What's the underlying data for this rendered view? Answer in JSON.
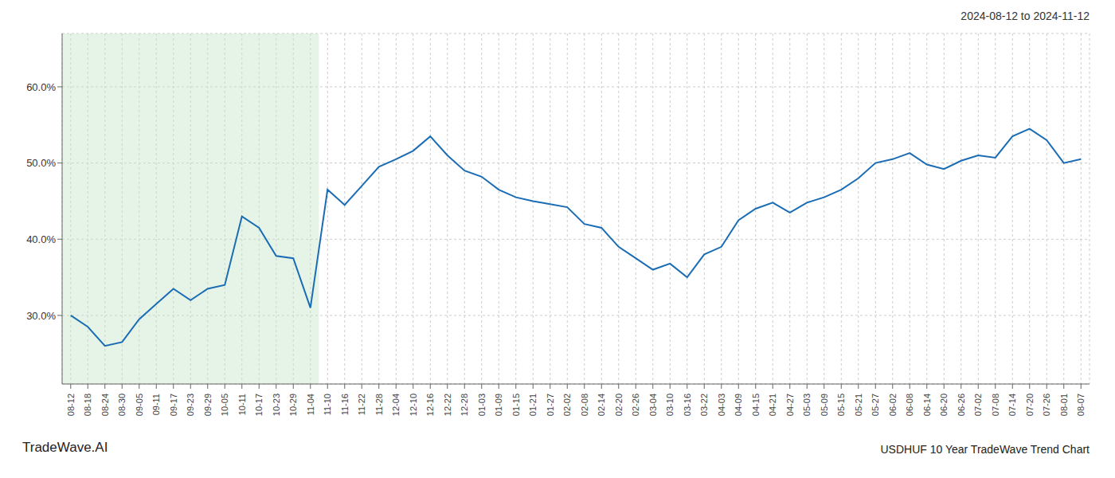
{
  "chart_data": {
    "type": "line",
    "title": "2024-08-12 to 2024-11-12",
    "annotations": [
      "TradeWave.AI",
      "USDHUF 10 Year TradeWave Trend Chart"
    ],
    "categories": [
      "08-12",
      "08-18",
      "08-24",
      "08-30",
      "09-05",
      "09-11",
      "09-17",
      "09-23",
      "09-29",
      "10-05",
      "10-11",
      "10-17",
      "10-23",
      "10-29",
      "11-04",
      "11-10",
      "11-16",
      "11-22",
      "11-28",
      "12-04",
      "12-10",
      "12-16",
      "12-22",
      "12-28",
      "01-03",
      "01-09",
      "01-15",
      "01-21",
      "01-27",
      "02-02",
      "02-08",
      "02-14",
      "02-20",
      "02-26",
      "03-04",
      "03-10",
      "03-16",
      "03-22",
      "04-03",
      "04-09",
      "04-15",
      "04-21",
      "04-27",
      "05-03",
      "05-09",
      "05-15",
      "05-21",
      "05-27",
      "06-02",
      "06-08",
      "06-14",
      "06-20",
      "06-26",
      "07-02",
      "07-08",
      "07-14",
      "07-20",
      "07-26",
      "08-01",
      "08-07"
    ],
    "values": [
      0.3,
      0.285,
      0.26,
      0.265,
      0.295,
      0.315,
      0.335,
      0.32,
      0.335,
      0.34,
      0.43,
      0.415,
      0.378,
      0.375,
      0.31,
      0.465,
      0.445,
      0.47,
      0.495,
      0.505,
      0.516,
      0.535,
      0.51,
      0.49,
      0.482,
      0.465,
      0.455,
      0.45,
      0.446,
      0.442,
      0.42,
      0.415,
      0.39,
      0.375,
      0.36,
      0.368,
      0.35,
      0.38,
      0.39,
      0.425,
      0.44,
      0.448,
      0.435,
      0.448,
      0.455,
      0.465,
      0.48,
      0.5,
      0.505,
      0.513,
      0.498,
      0.492,
      0.503,
      0.51,
      0.507,
      0.535,
      0.545,
      0.53,
      0.5,
      0.505
    ],
    "color": "#1a6cb5",
    "ylim": [
      0.21,
      0.67
    ],
    "yticks": [
      {
        "value": 0.3,
        "label": "30.0%"
      },
      {
        "value": 0.4,
        "label": "40.0%"
      },
      {
        "value": 0.5,
        "label": "50.0%"
      },
      {
        "value": 0.6,
        "label": "60.0%"
      }
    ],
    "grid": true,
    "shade": {
      "from": "08-12",
      "to": "11-04",
      "color": "#c8e6c9"
    }
  }
}
